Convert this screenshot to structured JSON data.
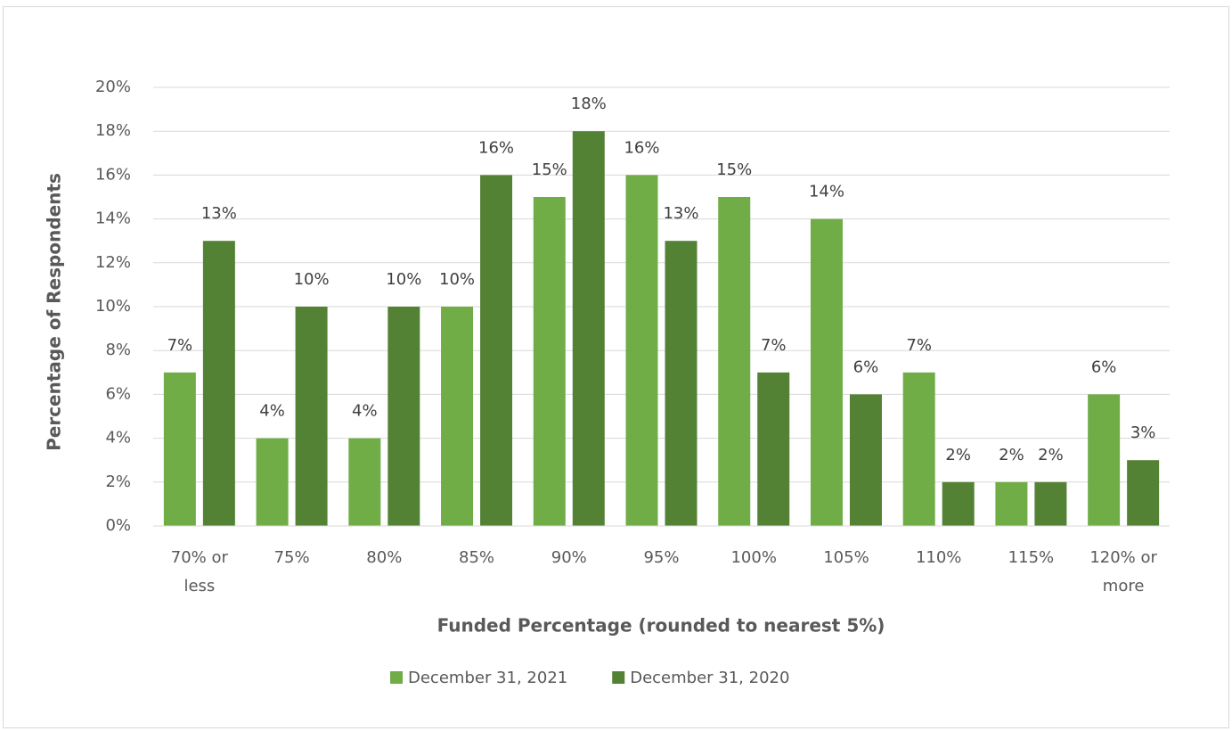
{
  "chart_data": {
    "type": "bar",
    "x_label": "Funded Percentage (rounded to nearest 5%)",
    "y_label": "Percentage of Respondents",
    "categories": [
      "70% or less",
      "75%",
      "80%",
      "85%",
      "90%",
      "95%",
      "100%",
      "105%",
      "110%",
      "115%",
      "120% or more"
    ],
    "series": [
      {
        "name": "December 31, 2021",
        "color": "#70ad47",
        "values": [
          7,
          4,
          4,
          10,
          15,
          16,
          15,
          14,
          7,
          2,
          6
        ],
        "value_labels": [
          "7%",
          "4%",
          "4%",
          "10%",
          "15%",
          "16%",
          "15%",
          "14%",
          "7%",
          "2%",
          "6%"
        ]
      },
      {
        "name": "December 31, 2020",
        "color": "#548235",
        "values": [
          13,
          10,
          10,
          16,
          18,
          13,
          7,
          6,
          2,
          2,
          3
        ],
        "value_labels": [
          "13%",
          "10%",
          "10%",
          "16%",
          "18%",
          "13%",
          "7%",
          "6%",
          "2%",
          "2%",
          "3%"
        ]
      }
    ],
    "ylim": [
      0,
      20
    ],
    "yticks": [
      {
        "value": 0,
        "label": "0%"
      },
      {
        "value": 2,
        "label": "2%"
      },
      {
        "value": 4,
        "label": "4%"
      },
      {
        "value": 6,
        "label": "6%"
      },
      {
        "value": 8,
        "label": "8%"
      },
      {
        "value": 10,
        "label": "10%"
      },
      {
        "value": 12,
        "label": "12%"
      },
      {
        "value": 14,
        "label": "14%"
      },
      {
        "value": 16,
        "label": "16%"
      },
      {
        "value": 18,
        "label": "18%"
      },
      {
        "value": 20,
        "label": "20%"
      }
    ],
    "grid": true,
    "legend": "bottom"
  }
}
